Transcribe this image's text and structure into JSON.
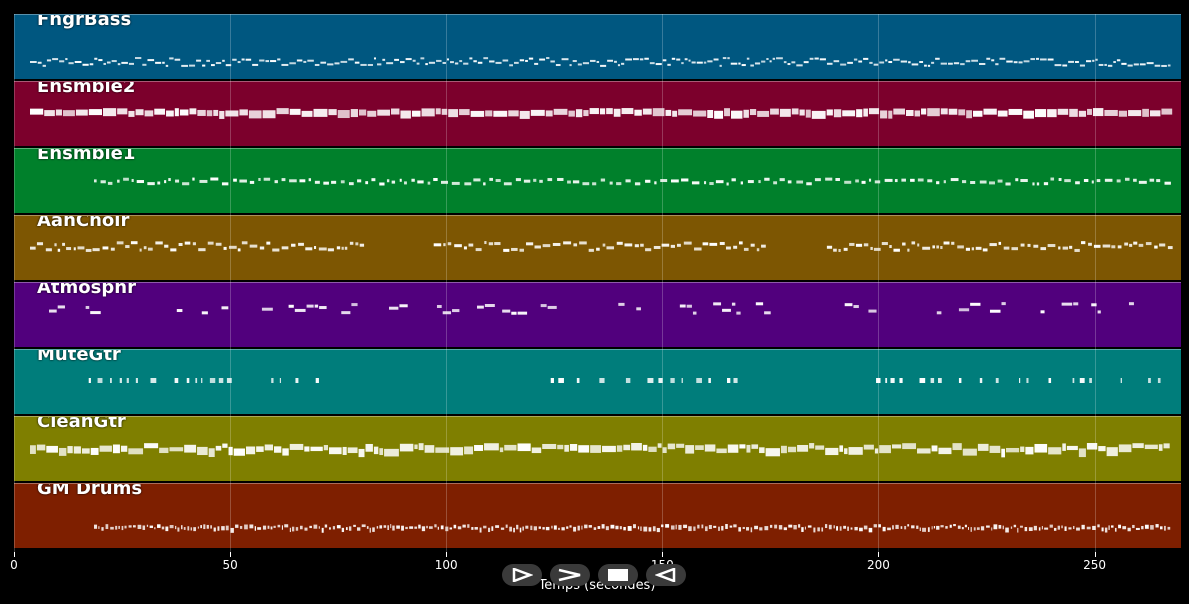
{
  "tracks": [
    {
      "name": "FngrBass",
      "color": "#005780",
      "density": "dense-line"
    },
    {
      "name": "Ensmble2",
      "color": "#7c002c",
      "density": "thick-line"
    },
    {
      "name": "Ensmble1",
      "color": "#00802b",
      "density": "sparse-line"
    },
    {
      "name": "AahChoir",
      "color": "#7d5602",
      "density": "gapped"
    },
    {
      "name": "Atmosphr",
      "color": "#51007d",
      "density": "sparse-blocks"
    },
    {
      "name": "MuteGtr",
      "color": "#007d7b",
      "density": "ticks"
    },
    {
      "name": "CleanGtr",
      "color": "#7f7f00",
      "density": "thick-gapped"
    },
    {
      "name": "GM Drums",
      "color": "#7e1f00",
      "density": "drums"
    }
  ],
  "x_axis": {
    "title": "Temps (secondes)",
    "min": 0,
    "max": 270,
    "ticks": [
      0,
      50,
      100,
      150,
      200,
      250
    ]
  },
  "controls": [
    {
      "name": "play-icon",
      "label": "play"
    },
    {
      "name": "forward-icon",
      "label": "forward"
    },
    {
      "name": "stop-icon",
      "label": "stop"
    },
    {
      "name": "back-icon",
      "label": "back"
    }
  ]
}
